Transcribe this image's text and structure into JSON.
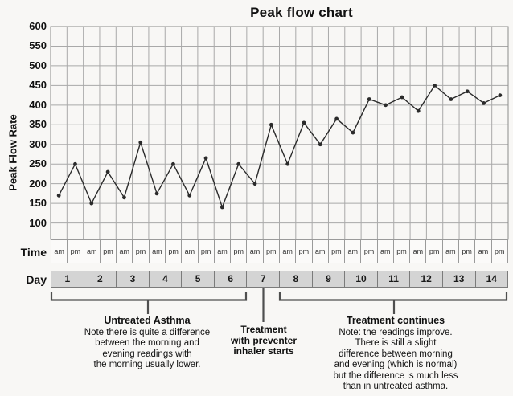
{
  "title": "Peak flow chart",
  "y_axis": {
    "label": "Peak Flow Rate",
    "ticks": [
      600,
      550,
      500,
      450,
      400,
      350,
      300,
      250,
      200,
      150,
      100
    ]
  },
  "x_axis": {
    "time_label": "Time",
    "day_label": "Day",
    "am_label": "am",
    "pm_label": "pm",
    "days": [
      "1",
      "2",
      "3",
      "4",
      "5",
      "6",
      "7",
      "8",
      "9",
      "10",
      "11",
      "12",
      "13",
      "14"
    ]
  },
  "chart_data": {
    "type": "line",
    "title": "Peak flow chart",
    "ylabel": "Peak Flow Rate",
    "ylim": [
      100,
      600
    ],
    "ytick_step": 50,
    "grid": true,
    "x_structure": "14 days, two readings per day (am then pm)",
    "readings": [
      {
        "day": 1,
        "am": 170,
        "pm": 250
      },
      {
        "day": 2,
        "am": 150,
        "pm": 230
      },
      {
        "day": 3,
        "am": 165,
        "pm": 305
      },
      {
        "day": 4,
        "am": 175,
        "pm": 250
      },
      {
        "day": 5,
        "am": 170,
        "pm": 265
      },
      {
        "day": 6,
        "am": 140,
        "pm": 250
      },
      {
        "day": 7,
        "am": 200,
        "pm": 350
      },
      {
        "day": 8,
        "am": 250,
        "pm": 355
      },
      {
        "day": 9,
        "am": 300,
        "pm": 365
      },
      {
        "day": 10,
        "am": 330,
        "pm": 415
      },
      {
        "day": 11,
        "am": 400,
        "pm": 420
      },
      {
        "day": 12,
        "am": 385,
        "pm": 450
      },
      {
        "day": 13,
        "am": 415,
        "pm": 435
      },
      {
        "day": 14,
        "am": 405,
        "pm": 425
      }
    ],
    "series": [
      {
        "name": "Peak Flow Rate",
        "values": [
          170,
          250,
          150,
          230,
          165,
          305,
          175,
          250,
          170,
          265,
          140,
          250,
          200,
          350,
          250,
          355,
          300,
          365,
          330,
          415,
          400,
          420,
          385,
          450,
          415,
          435,
          405,
          425
        ]
      }
    ]
  },
  "annotations": {
    "untreated": {
      "heading": "Untreated Asthma",
      "lines": [
        "Note there is quite a difference",
        "between the morning and",
        "evening readings with",
        "the morning usually lower."
      ],
      "span_days": "1-6"
    },
    "treatment_start": {
      "lines": [
        "Treatment",
        "with preventer",
        "inhaler starts"
      ],
      "span_days": "7"
    },
    "treatment_continues": {
      "heading": "Treatment continues",
      "lines": [
        "Note: the readings improve.",
        "There is still a slight",
        "difference between morning",
        "and evening (which is normal)",
        "but the difference is much less",
        "than in untreated asthma."
      ],
      "span_days": "8-14"
    }
  },
  "colors": {
    "background": "#f8f7f5",
    "line": "#2b2b2b",
    "grid": "#a9a9a9",
    "frame": "#8c8c8c",
    "day_cell_bg": "#d4d4d4",
    "bracket": "#4f4f4f"
  }
}
